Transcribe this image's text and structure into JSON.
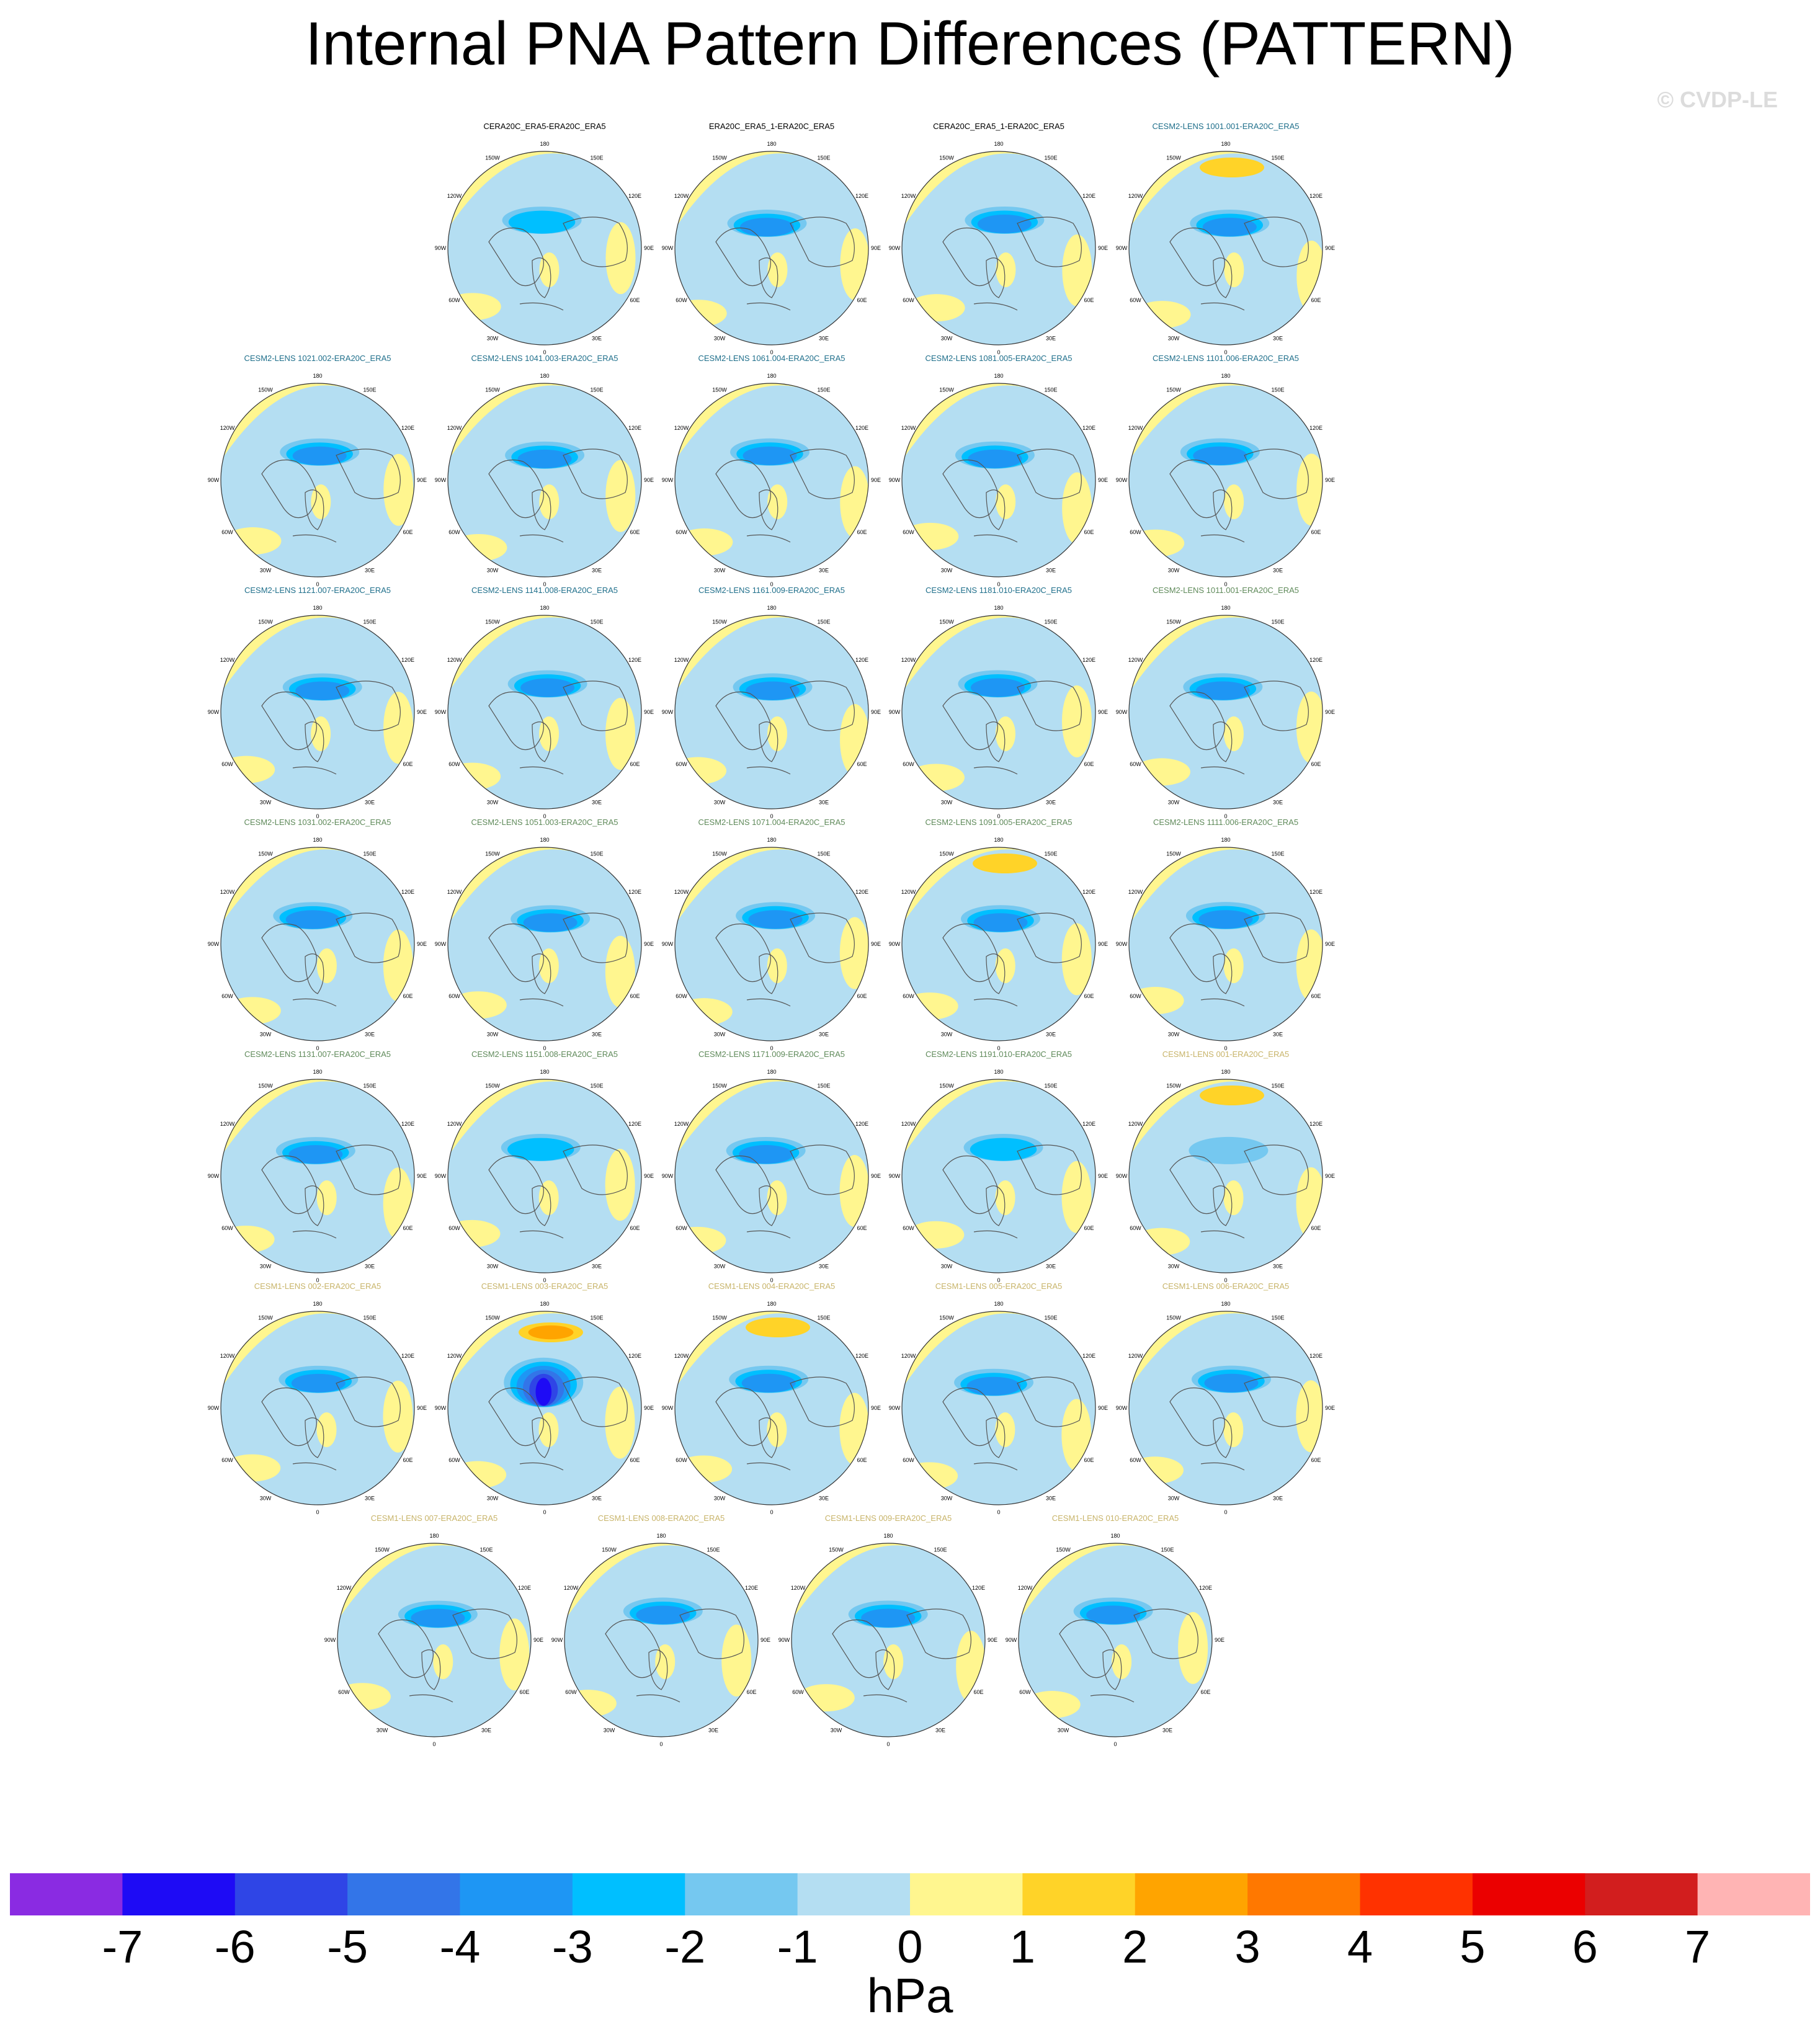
{
  "title": "Internal PNA Pattern Differences (PATTERN)",
  "credit": "© CVDP-LE",
  "chart_data": {
    "type": "heatmap",
    "title": "Internal PNA Pattern Differences (PATTERN)",
    "projection": "north polar stereographic",
    "unit": "hPa",
    "colorbar": {
      "ticks": [
        -7,
        -6,
        -5,
        -4,
        -3,
        -2,
        -1,
        0,
        1,
        2,
        3,
        4,
        5,
        6,
        7
      ],
      "colors": [
        "#8a2be2",
        "#1e0bf5",
        "#2f45e6",
        "#3375e8",
        "#1e96f4",
        "#00bfff",
        "#75c8f0",
        "#b4def2",
        "#fff68f",
        "#ffd328",
        "#ffa400",
        "#ff7800",
        "#ff3200",
        "#eb0000",
        "#d21e1e",
        "#ffb4b4"
      ]
    },
    "lon_labels": [
      "180",
      "150E",
      "120E",
      "90E",
      "60E",
      "30E",
      "0",
      "30W",
      "60W",
      "90W",
      "120W",
      "150W"
    ],
    "panels": [
      {
        "title": "CERA20C_ERA5-ERA20C_ERA5",
        "group": "reanalysis"
      },
      {
        "title": "ERA20C_ERA5_1-ERA20C_ERA5",
        "group": "reanalysis"
      },
      {
        "title": "CERA20C_ERA5_1-ERA20C_ERA5",
        "group": "reanalysis"
      },
      {
        "title": "CESM2-LENS 1001.001-ERA20C_ERA5",
        "group": "cesm2a"
      },
      {
        "title": "CESM2-LENS 1021.002-ERA20C_ERA5",
        "group": "cesm2a"
      },
      {
        "title": "CESM2-LENS 1041.003-ERA20C_ERA5",
        "group": "cesm2a"
      },
      {
        "title": "CESM2-LENS 1061.004-ERA20C_ERA5",
        "group": "cesm2a"
      },
      {
        "title": "CESM2-LENS 1081.005-ERA20C_ERA5",
        "group": "cesm2a"
      },
      {
        "title": "CESM2-LENS 1101.006-ERA20C_ERA5",
        "group": "cesm2a"
      },
      {
        "title": "CESM2-LENS 1121.007-ERA20C_ERA5",
        "group": "cesm2a"
      },
      {
        "title": "CESM2-LENS 1141.008-ERA20C_ERA5",
        "group": "cesm2a"
      },
      {
        "title": "CESM2-LENS 1161.009-ERA20C_ERA5",
        "group": "cesm2a"
      },
      {
        "title": "CESM2-LENS 1181.010-ERA20C_ERA5",
        "group": "cesm2a"
      },
      {
        "title": "CESM2-LENS 1011.001-ERA20C_ERA5",
        "group": "cesm2b"
      },
      {
        "title": "CESM2-LENS 1031.002-ERA20C_ERA5",
        "group": "cesm2b"
      },
      {
        "title": "CESM2-LENS 1051.003-ERA20C_ERA5",
        "group": "cesm2b"
      },
      {
        "title": "CESM2-LENS 1071.004-ERA20C_ERA5",
        "group": "cesm2b"
      },
      {
        "title": "CESM2-LENS 1091.005-ERA20C_ERA5",
        "group": "cesm2b"
      },
      {
        "title": "CESM2-LENS 1111.006-ERA20C_ERA5",
        "group": "cesm2b"
      },
      {
        "title": "CESM2-LENS 1131.007-ERA20C_ERA5",
        "group": "cesm2b"
      },
      {
        "title": "CESM2-LENS 1151.008-ERA20C_ERA5",
        "group": "cesm2b"
      },
      {
        "title": "CESM2-LENS 1171.009-ERA20C_ERA5",
        "group": "cesm2b"
      },
      {
        "title": "CESM2-LENS 1191.010-ERA20C_ERA5",
        "group": "cesm2b"
      },
      {
        "title": "CESM1-LENS 001-ERA20C_ERA5",
        "group": "cesm1"
      },
      {
        "title": "CESM1-LENS 002-ERA20C_ERA5",
        "group": "cesm1"
      },
      {
        "title": "CESM1-LENS 003-ERA20C_ERA5",
        "group": "cesm1"
      },
      {
        "title": "CESM1-LENS 004-ERA20C_ERA5",
        "group": "cesm1"
      },
      {
        "title": "CESM1-LENS 005-ERA20C_ERA5",
        "group": "cesm1"
      },
      {
        "title": "CESM1-LENS 006-ERA20C_ERA5",
        "group": "cesm1"
      },
      {
        "title": "CESM1-LENS 007-ERA20C_ERA5",
        "group": "cesm1"
      },
      {
        "title": "CESM1-LENS 008-ERA20C_ERA5",
        "group": "cesm1"
      },
      {
        "title": "CESM1-LENS 009-ERA20C_ERA5",
        "group": "cesm1"
      },
      {
        "title": "CESM1-LENS 010-ERA20C_ERA5",
        "group": "cesm1"
      }
    ],
    "group_title_colors": {
      "reanalysis": "#000000",
      "cesm2a": "#1f6f8b",
      "cesm2b": "#5f8a5a",
      "cesm1": "#c8b46a"
    },
    "panel_min_hPa": [
      -2,
      -3,
      -3,
      -3,
      -3,
      -3,
      -3,
      -3,
      -3,
      -3,
      -3,
      -3,
      -3,
      -3,
      -3,
      -3,
      -3,
      -3,
      -3,
      -3,
      -2,
      -3,
      -2,
      -1,
      -3,
      -6,
      -3,
      -3,
      -3,
      -3,
      -3,
      -3,
      -3
    ],
    "panel_max_hPa": [
      1,
      1,
      1,
      2,
      1,
      1,
      1,
      1,
      1,
      1,
      1,
      1,
      1,
      1,
      1,
      1,
      1,
      2,
      1,
      1,
      1,
      1,
      1,
      2,
      1,
      3,
      2,
      1,
      1,
      1,
      1,
      1,
      1
    ]
  }
}
